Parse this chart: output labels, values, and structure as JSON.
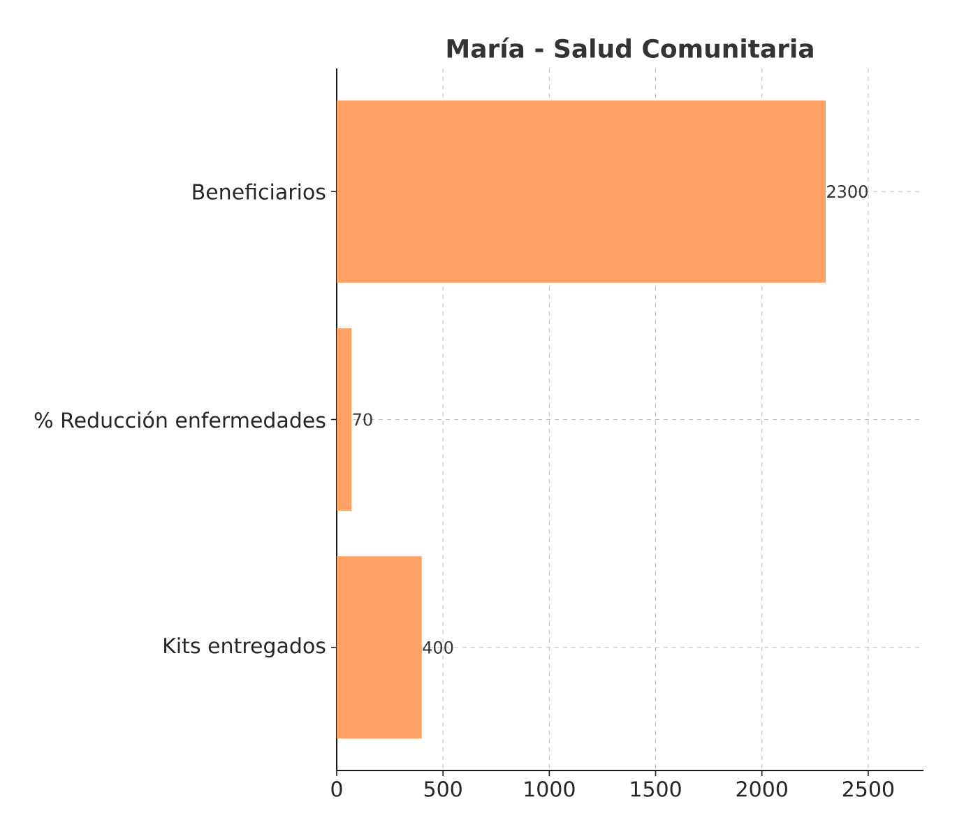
{
  "chart_data": {
    "type": "bar",
    "orientation": "horizontal",
    "title": "María - Salud Comunitaria",
    "categories": [
      "Beneficiarios",
      "% Reducción enfermedades",
      "Kits entregados"
    ],
    "values": [
      2300,
      70,
      400
    ],
    "color": "#ffa064",
    "data_labels": true,
    "xlim": [
      0,
      2760
    ],
    "xticks": [
      0,
      500,
      1000,
      1500,
      2000,
      2500
    ],
    "grid": true
  }
}
